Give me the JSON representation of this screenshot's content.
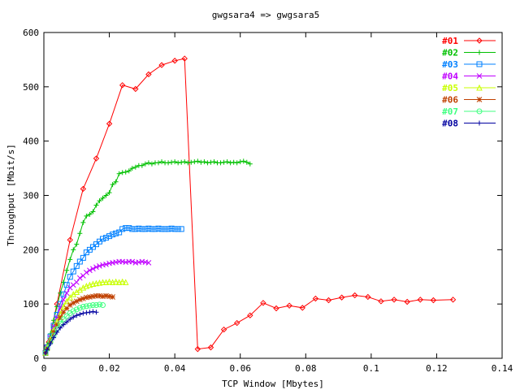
{
  "chart_data": {
    "type": "line",
    "title": "gwgsara4 => gwgsara5",
    "xlabel": "TCP Window [Mbytes]",
    "ylabel": "Throughput [Mbit/s]",
    "xlim": [
      0,
      0.14
    ],
    "ylim": [
      0,
      600
    ],
    "x_ticks": [
      "0",
      "0.02",
      "0.04",
      "0.06",
      "0.08",
      "0.1",
      "0.12",
      "0.14"
    ],
    "y_ticks": [
      "0",
      "100",
      "200",
      "300",
      "400",
      "500",
      "600"
    ],
    "grid": false,
    "legend_position": "top-right",
    "series": [
      {
        "name": "#01",
        "color": "#ff0000",
        "marker": "diamond",
        "x": [
          0.0005,
          0.0015,
          0.004,
          0.008,
          0.012,
          0.016,
          0.02,
          0.024,
          0.028,
          0.032,
          0.036,
          0.04,
          0.043,
          0.047,
          0.051,
          0.055,
          0.059,
          0.063,
          0.067,
          0.071,
          0.075,
          0.079,
          0.083,
          0.087,
          0.091,
          0.095,
          0.099,
          0.103,
          0.107,
          0.111,
          0.115,
          0.119,
          0.125
        ],
        "y": [
          10,
          30,
          100,
          218,
          312,
          368,
          432,
          503,
          496,
          523,
          540,
          548,
          552,
          17,
          20,
          53,
          65,
          79,
          102,
          92,
          97,
          93,
          110,
          107,
          112,
          116,
          113,
          105,
          108,
          104,
          108,
          107,
          108
        ]
      },
      {
        "name": "#02",
        "color": "#00c000",
        "marker": "plus",
        "x": [
          0.0005,
          0.001,
          0.002,
          0.003,
          0.004,
          0.005,
          0.006,
          0.007,
          0.008,
          0.009,
          0.01,
          0.011,
          0.012,
          0.013,
          0.014,
          0.015,
          0.016,
          0.017,
          0.018,
          0.019,
          0.02,
          0.021,
          0.022,
          0.023,
          0.024,
          0.025,
          0.026,
          0.027,
          0.028,
          0.029,
          0.03,
          0.031,
          0.032,
          0.033,
          0.034,
          0.035,
          0.036,
          0.037,
          0.038,
          0.039,
          0.04,
          0.041,
          0.042,
          0.043,
          0.044,
          0.045,
          0.046,
          0.047,
          0.048,
          0.049,
          0.05,
          0.051,
          0.052,
          0.053,
          0.054,
          0.055,
          0.056,
          0.057,
          0.058,
          0.059,
          0.06,
          0.061,
          0.062,
          0.063
        ],
        "y": [
          10,
          25,
          45,
          70,
          95,
          120,
          140,
          162,
          182,
          200,
          210,
          230,
          250,
          262,
          265,
          270,
          282,
          290,
          295,
          300,
          305,
          320,
          325,
          340,
          342,
          343,
          345,
          350,
          352,
          355,
          355,
          358,
          360,
          358,
          360,
          360,
          362,
          360,
          360,
          361,
          362,
          360,
          361,
          362,
          360,
          361,
          362,
          363,
          361,
          362,
          360,
          361,
          362,
          360,
          360,
          361,
          362,
          360,
          361,
          360,
          362,
          363,
          361,
          358
        ]
      },
      {
        "name": "#03",
        "color": "#0080ff",
        "marker": "square",
        "x": [
          0.0005,
          0.001,
          0.002,
          0.003,
          0.004,
          0.005,
          0.006,
          0.007,
          0.008,
          0.009,
          0.01,
          0.011,
          0.012,
          0.013,
          0.014,
          0.015,
          0.016,
          0.017,
          0.018,
          0.019,
          0.02,
          0.021,
          0.022,
          0.023,
          0.024,
          0.025,
          0.026,
          0.027,
          0.028,
          0.029,
          0.03,
          0.031,
          0.032,
          0.033,
          0.034,
          0.035,
          0.036,
          0.037,
          0.038,
          0.039,
          0.04,
          0.041,
          0.042
        ],
        "y": [
          10,
          20,
          40,
          60,
          80,
          100,
          118,
          135,
          150,
          160,
          170,
          178,
          185,
          195,
          200,
          205,
          210,
          215,
          220,
          222,
          225,
          228,
          230,
          232,
          238,
          240,
          240,
          238,
          238,
          239,
          238,
          238,
          239,
          238,
          238,
          239,
          238,
          238,
          238,
          239,
          238,
          238,
          238
        ]
      },
      {
        "name": "#04",
        "color": "#c000ff",
        "marker": "cross",
        "x": [
          0.0005,
          0.001,
          0.002,
          0.003,
          0.004,
          0.005,
          0.006,
          0.007,
          0.008,
          0.009,
          0.01,
          0.011,
          0.012,
          0.013,
          0.014,
          0.015,
          0.016,
          0.017,
          0.018,
          0.019,
          0.02,
          0.021,
          0.022,
          0.023,
          0.024,
          0.025,
          0.026,
          0.027,
          0.028,
          0.029,
          0.03,
          0.031,
          0.032
        ],
        "y": [
          10,
          20,
          38,
          58,
          75,
          92,
          108,
          120,
          130,
          135,
          140,
          148,
          152,
          158,
          162,
          165,
          168,
          170,
          172,
          173,
          175,
          176,
          177,
          178,
          178,
          177,
          178,
          178,
          176,
          177,
          178,
          177,
          176
        ]
      },
      {
        "name": "#05",
        "color": "#c8ff00",
        "marker": "triangle",
        "x": [
          0.0005,
          0.001,
          0.002,
          0.003,
          0.004,
          0.005,
          0.006,
          0.007,
          0.008,
          0.009,
          0.01,
          0.011,
          0.012,
          0.013,
          0.014,
          0.015,
          0.016,
          0.017,
          0.018,
          0.019,
          0.02,
          0.021,
          0.022,
          0.023,
          0.024,
          0.025
        ],
        "y": [
          10,
          20,
          35,
          52,
          68,
          82,
          95,
          105,
          112,
          118,
          122,
          126,
          130,
          133,
          135,
          137,
          138,
          139,
          140,
          140,
          141,
          140,
          141,
          140,
          141,
          140
        ]
      },
      {
        "name": "#06",
        "color": "#c04000",
        "marker": "star",
        "x": [
          0.0005,
          0.001,
          0.002,
          0.003,
          0.004,
          0.005,
          0.006,
          0.007,
          0.008,
          0.009,
          0.01,
          0.011,
          0.012,
          0.013,
          0.014,
          0.015,
          0.016,
          0.017,
          0.018,
          0.019,
          0.02,
          0.021
        ],
        "y": [
          10,
          18,
          32,
          48,
          62,
          75,
          85,
          92,
          98,
          102,
          105,
          108,
          110,
          112,
          113,
          114,
          115,
          115,
          114,
          115,
          114,
          113
        ]
      },
      {
        "name": "#07",
        "color": "#40ff80",
        "marker": "circle",
        "x": [
          0.0005,
          0.001,
          0.002,
          0.003,
          0.004,
          0.005,
          0.006,
          0.007,
          0.008,
          0.009,
          0.01,
          0.011,
          0.012,
          0.013,
          0.014,
          0.015,
          0.016,
          0.017,
          0.018
        ],
        "y": [
          10,
          18,
          30,
          42,
          54,
          64,
          72,
          78,
          83,
          87,
          90,
          93,
          95,
          96,
          97,
          98,
          98,
          99,
          98
        ]
      },
      {
        "name": "#08",
        "color": "#0000a0",
        "marker": "plus",
        "x": [
          0.0005,
          0.001,
          0.002,
          0.003,
          0.004,
          0.005,
          0.006,
          0.007,
          0.008,
          0.009,
          0.01,
          0.011,
          0.012,
          0.013,
          0.014,
          0.015,
          0.016
        ],
        "y": [
          10,
          16,
          27,
          38,
          48,
          56,
          62,
          67,
          72,
          76,
          79,
          81,
          83,
          84,
          85,
          86,
          85
        ]
      }
    ]
  }
}
